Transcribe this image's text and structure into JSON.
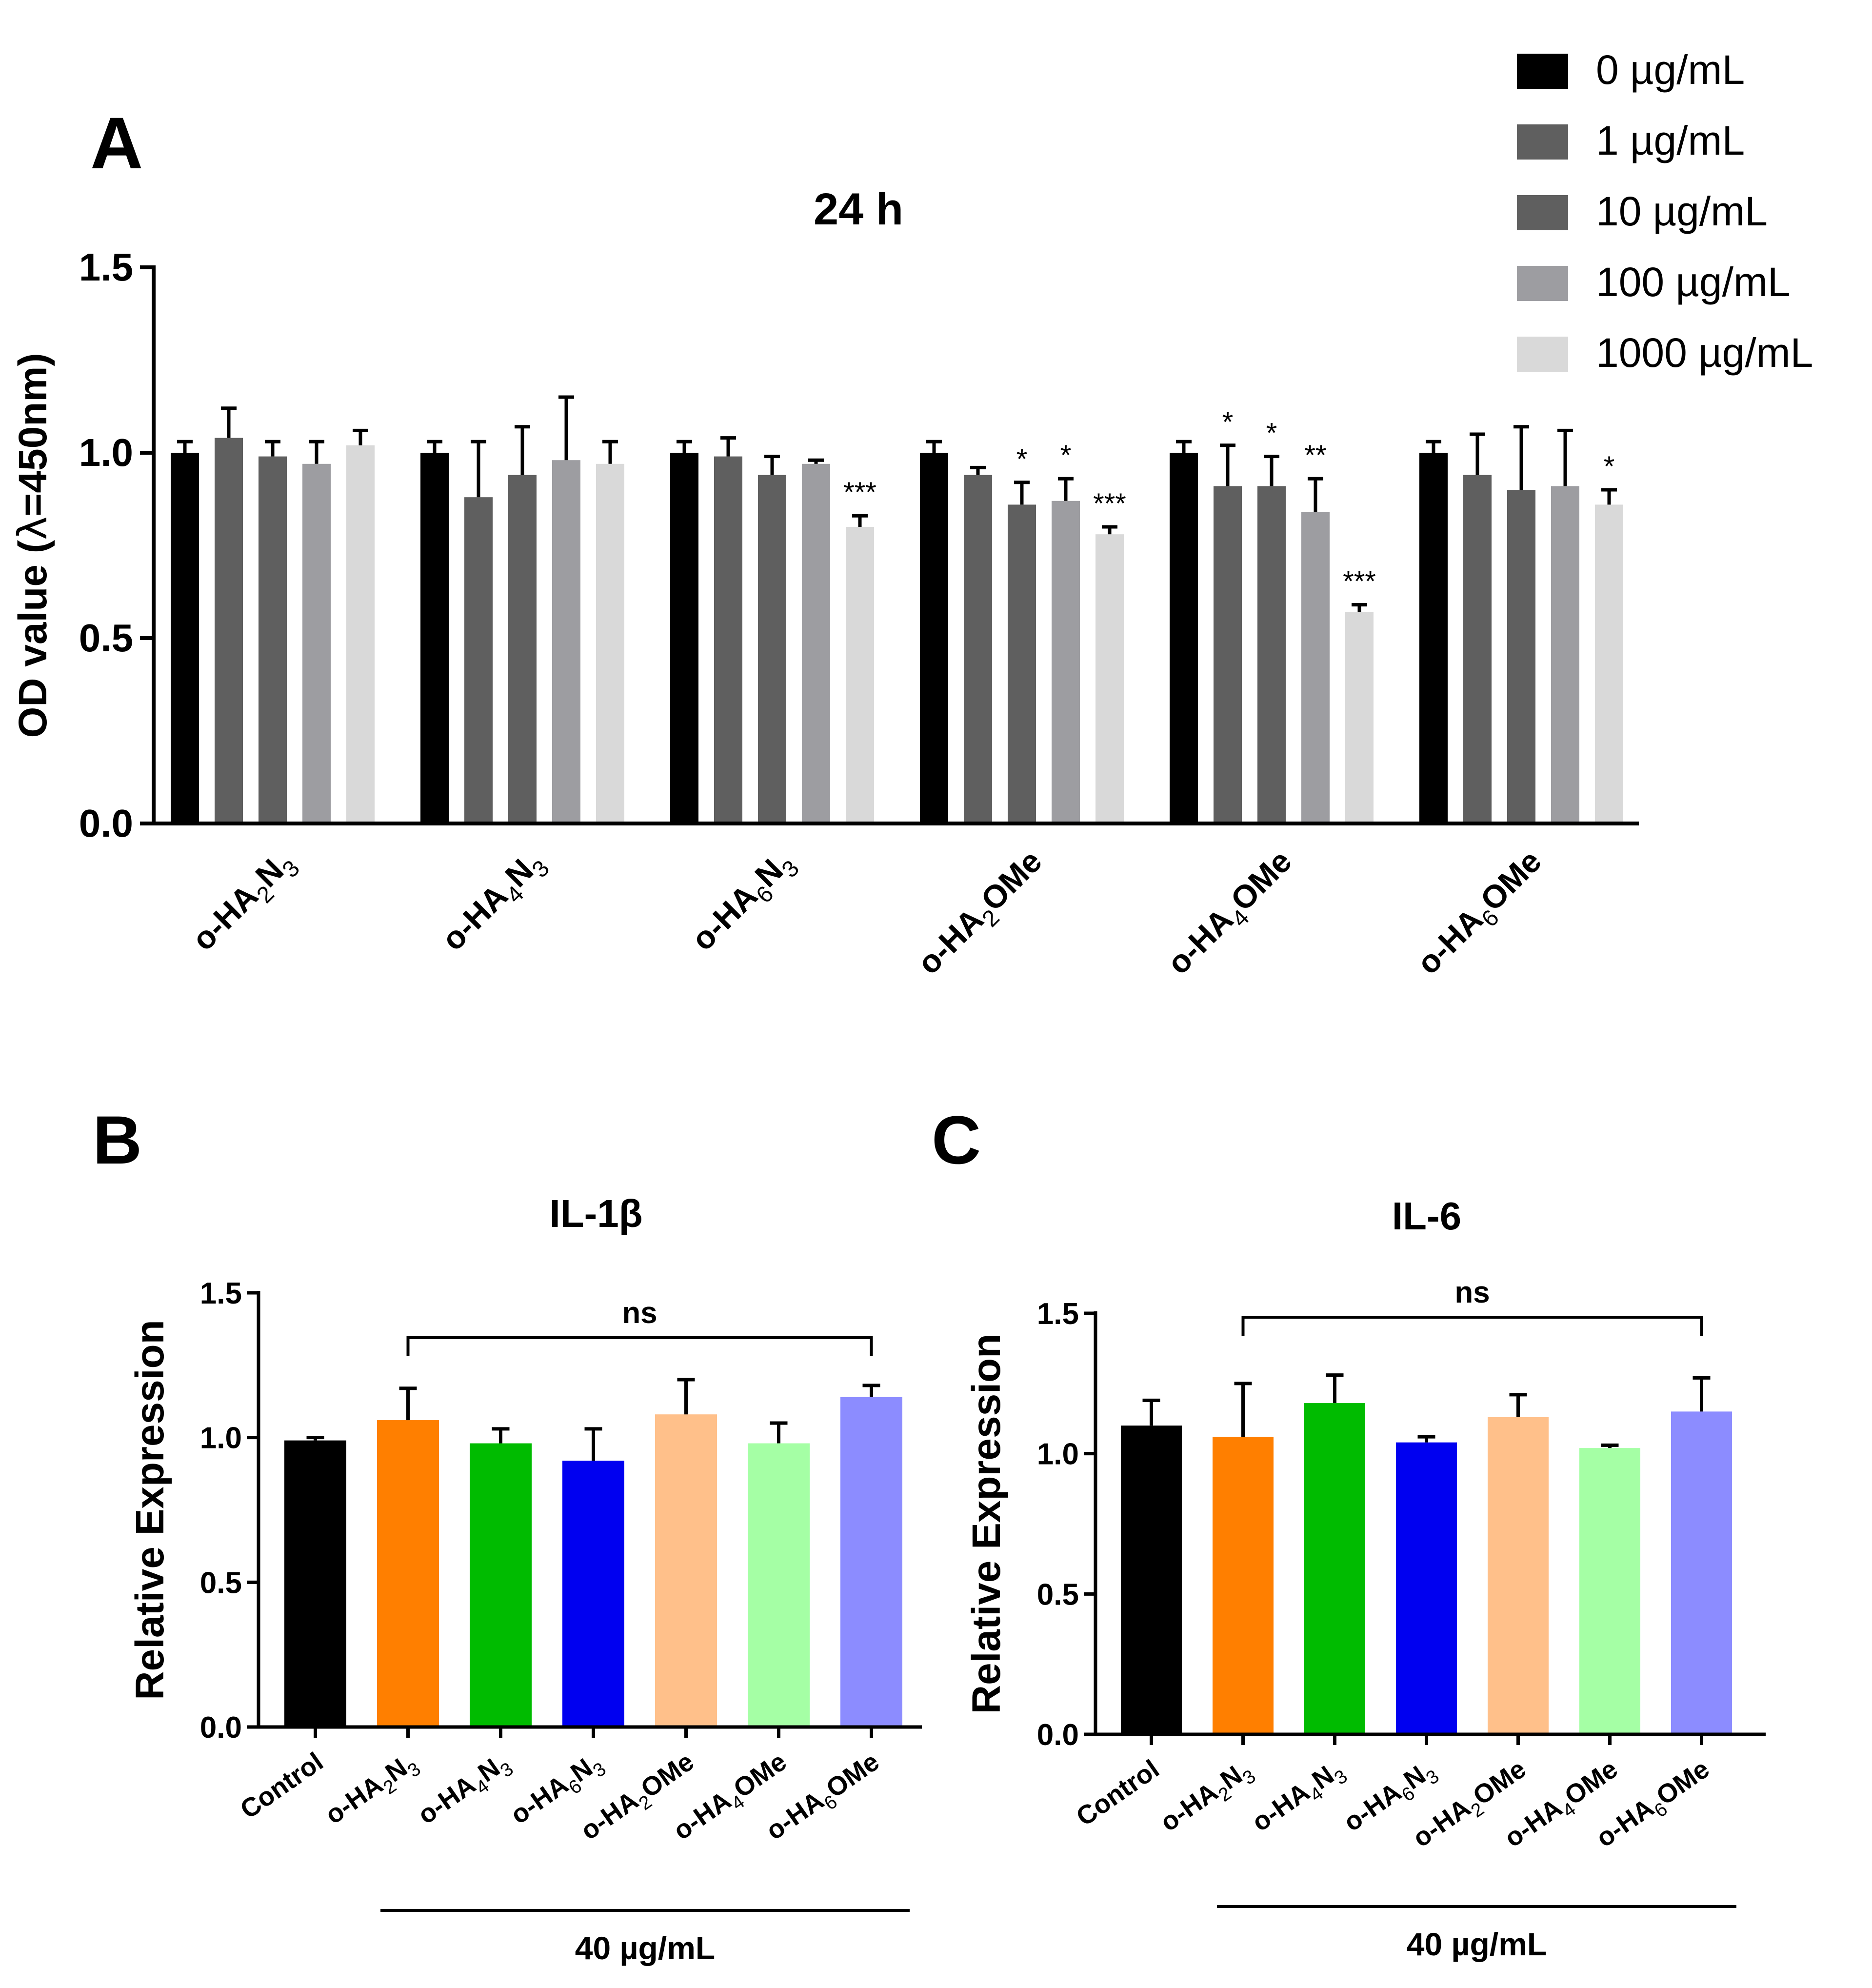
{
  "figure": {
    "panel_letters": [
      "A",
      "B",
      "C"
    ]
  },
  "chart_data": [
    {
      "panel": "A",
      "type": "bar",
      "title": "24 h",
      "ylabel_parts": [
        "OD value (",
        "λ",
        "=450nm)"
      ],
      "xlabel": "",
      "ylim": [
        0,
        1.5
      ],
      "yticks": [
        0.0,
        0.5,
        1.0,
        1.5
      ],
      "ytick_labels": [
        "0.0",
        "0.5",
        "1.0",
        "1.5"
      ],
      "legend_position": "top-right",
      "categories": [
        {
          "label": [
            "o-HA",
            "2",
            "N",
            "3"
          ]
        },
        {
          "label": [
            "o-HA",
            "4",
            "N",
            "3"
          ]
        },
        {
          "label": [
            "o-HA",
            "6",
            "N",
            "3"
          ]
        },
        {
          "label": [
            "o-HA",
            "2",
            "OMe",
            ""
          ]
        },
        {
          "label": [
            "o-HA",
            "4",
            "OMe",
            ""
          ]
        },
        {
          "label": [
            "o-HA",
            "6",
            "OMe",
            ""
          ]
        }
      ],
      "series": [
        {
          "name": "0 µg/mL",
          "color": "#000000",
          "values": [
            1.0,
            1.0,
            1.0,
            1.0,
            1.0,
            1.0
          ],
          "errors": [
            0.03,
            0.03,
            0.03,
            0.03,
            0.03,
            0.03
          ],
          "annotations": [
            "",
            "",
            "",
            "",
            "",
            ""
          ]
        },
        {
          "name": "1 µg/mL",
          "color": "#5f5f5f",
          "values": [
            1.04,
            0.88,
            0.99,
            0.94,
            0.91,
            0.94
          ],
          "errors": [
            0.08,
            0.15,
            0.05,
            0.02,
            0.11,
            0.11
          ],
          "annotations": [
            "",
            "",
            "",
            "",
            "*",
            ""
          ]
        },
        {
          "name": "10 µg/mL",
          "color": "#5f5f5f",
          "values": [
            0.99,
            0.94,
            0.94,
            0.86,
            0.91,
            0.9
          ],
          "errors": [
            0.04,
            0.13,
            0.05,
            0.06,
            0.08,
            0.17
          ],
          "annotations": [
            "",
            "",
            "",
            "*",
            "*",
            ""
          ]
        },
        {
          "name": "100 µg/mL",
          "color": "#9d9da1",
          "values": [
            0.97,
            0.98,
            0.97,
            0.87,
            0.84,
            0.91
          ],
          "errors": [
            0.06,
            0.17,
            0.01,
            0.06,
            0.09,
            0.15
          ],
          "annotations": [
            "",
            "",
            "",
            "*",
            "**",
            ""
          ]
        },
        {
          "name": "1000 µg/mL",
          "color": "#d9d9d9",
          "values": [
            1.02,
            0.97,
            0.8,
            0.78,
            0.57,
            0.86
          ],
          "errors": [
            0.04,
            0.06,
            0.03,
            0.02,
            0.02,
            0.04
          ],
          "annotations": [
            "",
            "",
            "***",
            "***",
            "***",
            "*"
          ]
        }
      ]
    },
    {
      "panel": "B",
      "type": "bar",
      "title": "IL-1β",
      "ylabel": "Relative Expression",
      "xlabel": "",
      "ylim": [
        0,
        1.5
      ],
      "yticks": [
        0.0,
        0.5,
        1.0,
        1.5
      ],
      "ytick_labels": [
        "0.0",
        "0.5",
        "1.0",
        "1.5"
      ],
      "significance_label": "ns",
      "group_label": "40 µg/mL",
      "categories": [
        {
          "label": [
            "Control",
            "",
            "",
            ""
          ]
        },
        {
          "label": [
            "o-HA",
            "2",
            "N",
            "3"
          ]
        },
        {
          "label": [
            "o-HA",
            "4",
            "N",
            "3"
          ]
        },
        {
          "label": [
            "o-HA",
            "6",
            "N",
            "3"
          ]
        },
        {
          "label": [
            "o-HA",
            "2",
            "OMe",
            ""
          ]
        },
        {
          "label": [
            "o-HA",
            "4",
            "OMe",
            ""
          ]
        },
        {
          "label": [
            "o-HA",
            "6",
            "OMe",
            ""
          ]
        }
      ],
      "values": [
        0.99,
        1.06,
        0.98,
        0.92,
        1.08,
        0.98,
        1.14
      ],
      "errors": [
        0.01,
        0.11,
        0.05,
        0.11,
        0.12,
        0.07,
        0.04
      ],
      "colors": [
        "#000000",
        "#ff7f00",
        "#00bb00",
        "#0000f0",
        "#ffc08a",
        "#a5ffa5",
        "#8c8cff"
      ]
    },
    {
      "panel": "C",
      "type": "bar",
      "title": "IL-6",
      "ylabel": "Relative Expression",
      "xlabel": "",
      "ylim": [
        0,
        1.5
      ],
      "yticks": [
        0.0,
        0.5,
        1.0,
        1.5
      ],
      "ytick_labels": [
        "0.0",
        "0.5",
        "1.0",
        "1.5"
      ],
      "significance_label": "ns",
      "group_label": "40 µg/mL",
      "categories": [
        {
          "label": [
            "Control",
            "",
            "",
            ""
          ]
        },
        {
          "label": [
            "o-HA",
            "2",
            "N",
            "3"
          ]
        },
        {
          "label": [
            "o-HA",
            "4",
            "N",
            "3"
          ]
        },
        {
          "label": [
            "o-HA",
            "6",
            "N",
            "3"
          ]
        },
        {
          "label": [
            "o-HA",
            "2",
            "OMe",
            ""
          ]
        },
        {
          "label": [
            "o-HA",
            "4",
            "OMe",
            ""
          ]
        },
        {
          "label": [
            "o-HA",
            "6",
            "OMe",
            ""
          ]
        }
      ],
      "values": [
        1.1,
        1.06,
        1.18,
        1.04,
        1.13,
        1.02,
        1.15
      ],
      "errors": [
        0.09,
        0.19,
        0.1,
        0.02,
        0.08,
        0.01,
        0.12
      ],
      "colors": [
        "#000000",
        "#ff7f00",
        "#00bb00",
        "#0000f0",
        "#ffc08a",
        "#a5ffa5",
        "#8c8cff"
      ]
    }
  ]
}
